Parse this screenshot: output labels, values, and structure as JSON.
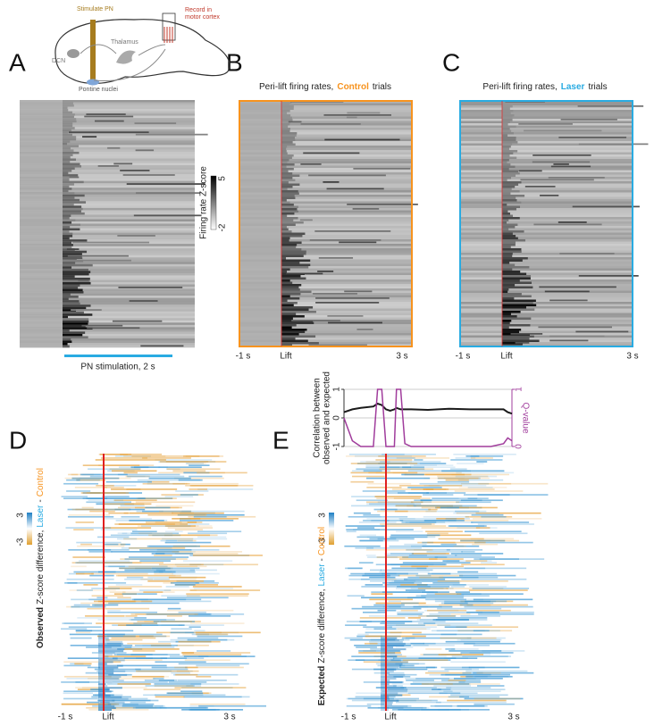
{
  "figure": {
    "A": {
      "label": "A",
      "schematic": {
        "stimulate": "Stimulate PN",
        "record": [
          "Record in",
          "motor cortex"
        ],
        "thalamus": "Thalamus",
        "dcn": "DCN",
        "pontine": "Pontine nuclei"
      },
      "stim_bar_label": "PN stimulation, 2 s",
      "colorbar": {
        "label": "Firing rate Z-score",
        "ticks": [
          -2,
          5
        ]
      }
    },
    "B": {
      "label": "B",
      "title": [
        "Peri-lift firing rates,",
        "Control",
        "trials"
      ],
      "x_labels": [
        "-1 s",
        "Lift",
        "3 s"
      ]
    },
    "C": {
      "label": "C",
      "title": [
        "Peri-lift firing rates,",
        "Laser",
        "trials"
      ],
      "x_labels": [
        "-1 s",
        "Lift",
        "3 s"
      ]
    },
    "D": {
      "label": "D",
      "ylabel": [
        "Observed",
        "Z-score difference,",
        "Laser",
        "-",
        "Control"
      ],
      "colorbar": {
        "ticks": [
          -3,
          3
        ]
      },
      "x_labels": [
        "-1 s",
        "Lift",
        "3 s"
      ]
    },
    "E": {
      "label": "E",
      "ylabel": [
        "Expected",
        "Z-score difference,",
        "Laser",
        "-",
        "Control"
      ],
      "colorbar": {
        "ticks": [
          -3,
          3
        ]
      },
      "x_labels": [
        "-1 s",
        "Lift",
        "3 s"
      ]
    }
  },
  "chart_data": {
    "type": "line",
    "ylabel": [
      "Correlation between",
      "observed and expected"
    ],
    "y2label": "Q-value",
    "x": [
      -1,
      -0.8,
      -0.6,
      -0.3,
      -0.2,
      -0.1,
      0,
      0.1,
      0.2,
      0.25,
      0.35,
      0.45,
      0.6,
      1,
      1.5,
      2,
      2.5,
      2.8,
      2.9,
      3
    ],
    "xlim": [
      -1,
      3
    ],
    "ylim": [
      -1,
      1
    ],
    "yticks": [
      -1,
      0,
      1
    ],
    "y2lim": [
      0,
      1
    ],
    "y2ticks": [
      0,
      1
    ],
    "grid": true,
    "series": [
      {
        "color": "#1a1a1a",
        "values": [
          0.2,
          0.3,
          0.35,
          0.4,
          0.5,
          0.45,
          0.3,
          0.25,
          0.3,
          0.35,
          0.3,
          0.3,
          0.3,
          0.28,
          0.32,
          0.3,
          0.3,
          0.3,
          0.2,
          0.15
        ]
      },
      {
        "color": "#a03c9c",
        "axis": "y2",
        "values": [
          0.5,
          0.1,
          0,
          0,
          1,
          1,
          0,
          0,
          0,
          1,
          1,
          0.05,
          0,
          0,
          0,
          0,
          0,
          0.05,
          0.15,
          0.1
        ]
      }
    ]
  }
}
